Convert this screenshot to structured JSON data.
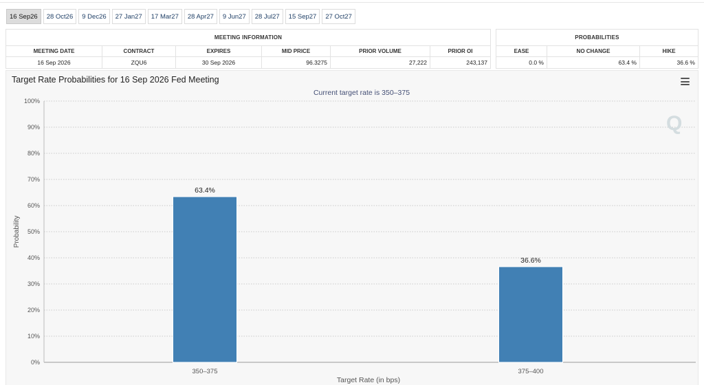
{
  "tabs": [
    "16 Sep26",
    "28 Oct26",
    "9 Dec26",
    "27 Jan27",
    "17 Mar27",
    "28 Apr27",
    "9 Jun27",
    "28 Jul27",
    "15 Sep27",
    "27 Oct27"
  ],
  "active_tab": 0,
  "meeting_info": {
    "title": "MEETING INFORMATION",
    "headers": {
      "meeting_date": "MEETING DATE",
      "contract": "CONTRACT",
      "expires": "EXPIRES",
      "mid_price": "MID PRICE",
      "prior_volume": "PRIOR VOLUME",
      "prior_oi": "PRIOR OI"
    },
    "values": {
      "meeting_date": "16 Sep 2026",
      "contract": "ZQU6",
      "expires": "30 Sep 2026",
      "mid_price": "96.3275",
      "prior_volume": "27,222",
      "prior_oi": "243,137"
    }
  },
  "probabilities": {
    "title": "PROBABILITIES",
    "headers": {
      "ease": "EASE",
      "no_change": "NO CHANGE",
      "hike": "HIKE"
    },
    "values": {
      "ease": "0.0 %",
      "no_change": "63.4 %",
      "hike": "36.6 %"
    }
  },
  "chart_data": {
    "type": "bar",
    "title": "Target Rate Probabilities for 16 Sep 2026 Fed Meeting",
    "subtitle": "Current target rate is 350–375",
    "xlabel": "Target Rate (in bps)",
    "ylabel": "Probability",
    "categories": [
      "350–375",
      "375–400"
    ],
    "values": [
      63.4,
      36.6
    ],
    "data_labels": [
      "63.4%",
      "36.6%"
    ],
    "ylim": [
      0,
      100
    ],
    "yticks": [
      0,
      10,
      20,
      30,
      40,
      50,
      60,
      70,
      80,
      90,
      100
    ],
    "ytick_labels": [
      "0%",
      "10%",
      "20%",
      "30%",
      "40%",
      "50%",
      "60%",
      "70%",
      "80%",
      "90%",
      "100%"
    ],
    "grid": true,
    "legend": "none",
    "bar_color": "#4180b4"
  },
  "watermark": "Q",
  "icons": {
    "menu": "hamburger-menu-icon"
  }
}
